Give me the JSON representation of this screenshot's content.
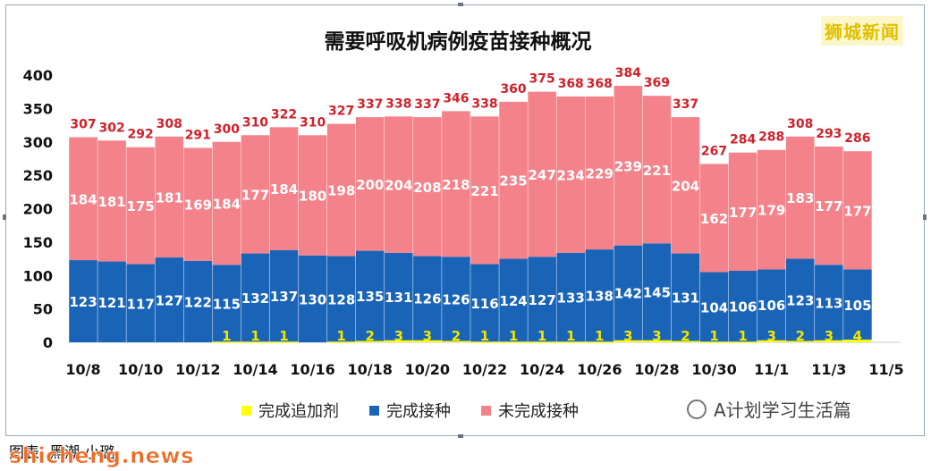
{
  "brand_top_right": "狮城新闻",
  "brand_bottom_left": "shicheng.news",
  "credit": "图表: 黑潮·小璐",
  "watermark": "A计划学习生活篇",
  "colors": {
    "booster": "#ffff00",
    "completed": "#1a64b8",
    "incomplete": "#f4828a",
    "total_label": "#d0202a"
  },
  "chart_data": {
    "type": "bar",
    "stacked": true,
    "title": "需要呼吸机病例疫苗接种概况",
    "xlabel": "",
    "ylabel": "",
    "ylim": [
      0,
      400
    ],
    "yticks": [
      0,
      50,
      100,
      150,
      200,
      250,
      300,
      350,
      400
    ],
    "legend_position": "bottom",
    "x_tick_labels": [
      "10/8",
      "10/10",
      "10/12",
      "10/14",
      "10/16",
      "10/18",
      "10/20",
      "10/22",
      "10/24",
      "10/26",
      "10/28",
      "10/30",
      "11/1",
      "11/3",
      "11/5"
    ],
    "categories": [
      "10/8",
      "10/9",
      "10/10",
      "10/11",
      "10/12",
      "10/13",
      "10/14",
      "10/15",
      "10/16",
      "10/17",
      "10/18",
      "10/19",
      "10/20",
      "10/21",
      "10/22",
      "10/23",
      "10/24",
      "10/25",
      "10/26",
      "10/27",
      "10/28",
      "10/29",
      "10/30",
      "10/31",
      "11/1",
      "11/2",
      "11/3",
      "11/4"
    ],
    "series": [
      {
        "name": "完成追加剂",
        "color": "#ffff00",
        "values": [
          0,
          0,
          0,
          0,
          0,
          1,
          1,
          1,
          0,
          1,
          2,
          3,
          3,
          2,
          1,
          1,
          1,
          1,
          1,
          3,
          3,
          2,
          1,
          1,
          3,
          2,
          3,
          4
        ]
      },
      {
        "name": "完成接种",
        "color": "#1a64b8",
        "values": [
          123,
          121,
          117,
          127,
          122,
          115,
          132,
          137,
          130,
          128,
          135,
          131,
          126,
          126,
          116,
          124,
          127,
          133,
          138,
          142,
          145,
          131,
          104,
          106,
          106,
          123,
          113,
          105
        ]
      },
      {
        "name": "未完成接种",
        "color": "#f4828a",
        "values": [
          184,
          181,
          175,
          181,
          169,
          184,
          177,
          184,
          180,
          198,
          200,
          204,
          208,
          218,
          221,
          235,
          247,
          234,
          229,
          239,
          221,
          204,
          162,
          177,
          179,
          183,
          177,
          177
        ]
      }
    ],
    "totals": [
      307,
      302,
      292,
      308,
      291,
      300,
      310,
      322,
      310,
      327,
      337,
      338,
      337,
      346,
      338,
      360,
      375,
      368,
      368,
      384,
      369,
      337,
      267,
      284,
      288,
      308,
      293,
      286
    ]
  }
}
